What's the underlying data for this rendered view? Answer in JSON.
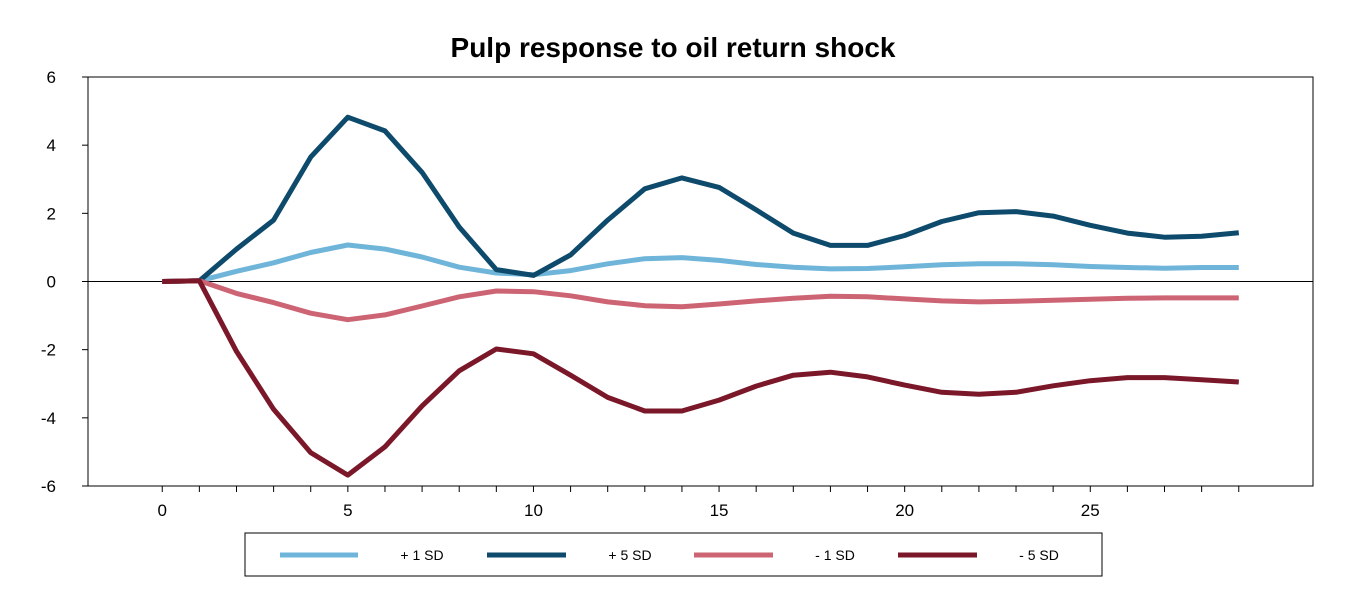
{
  "chart_data": {
    "type": "line",
    "title": "Pulp response to oil return shock",
    "xlabel": "",
    "ylabel": "",
    "xlim": [
      -2,
      31
    ],
    "ylim": [
      -6,
      6
    ],
    "x_ticks": [
      0,
      5,
      10,
      15,
      20,
      25
    ],
    "x_tick_labels": [
      "0",
      "5",
      "10",
      "15",
      "20",
      "25"
    ],
    "y_ticks": [
      -6,
      -4,
      -2,
      0,
      2,
      4,
      6
    ],
    "y_tick_labels": [
      "-6",
      "-4",
      "-2",
      "0",
      "2",
      "4",
      "6"
    ],
    "grid": false,
    "legend_position": "bottom",
    "x": [
      0,
      1,
      2,
      3,
      4,
      5,
      6,
      7,
      8,
      9,
      10,
      11,
      12,
      13,
      14,
      15,
      16,
      17,
      18,
      19,
      20,
      21,
      22,
      23,
      24,
      25,
      26,
      27,
      28,
      29
    ],
    "series": [
      {
        "name": "+ 1 SD",
        "color": "#6fb4d9",
        "values": [
          0,
          0.02,
          0.3,
          0.55,
          0.85,
          1.07,
          0.95,
          0.72,
          0.42,
          0.25,
          0.2,
          0.32,
          0.52,
          0.67,
          0.7,
          0.62,
          0.5,
          0.42,
          0.37,
          0.38,
          0.43,
          0.49,
          0.52,
          0.52,
          0.49,
          0.44,
          0.41,
          0.39,
          0.41,
          0.41
        ]
      },
      {
        "name": "+ 5 SD",
        "color": "#0d4a6b",
        "values": [
          0,
          0.02,
          0.95,
          1.8,
          3.65,
          4.82,
          4.42,
          3.2,
          1.6,
          0.35,
          0.18,
          0.78,
          1.8,
          2.72,
          3.04,
          2.76,
          2.1,
          1.42,
          1.06,
          1.06,
          1.35,
          1.76,
          2.02,
          2.05,
          1.92,
          1.65,
          1.42,
          1.3,
          1.33,
          1.43
        ]
      },
      {
        "name": "- 1 SD",
        "color": "#cd6474",
        "values": [
          0,
          0.02,
          -0.35,
          -0.62,
          -0.93,
          -1.12,
          -0.98,
          -0.72,
          -0.45,
          -0.28,
          -0.3,
          -0.42,
          -0.6,
          -0.71,
          -0.74,
          -0.66,
          -0.57,
          -0.49,
          -0.43,
          -0.45,
          -0.51,
          -0.57,
          -0.6,
          -0.58,
          -0.55,
          -0.52,
          -0.49,
          -0.48,
          -0.48,
          -0.48
        ]
      },
      {
        "name": "- 5 SD",
        "color": "#7a1729",
        "values": [
          0,
          0.02,
          -2.05,
          -3.75,
          -5.02,
          -5.68,
          -4.85,
          -3.65,
          -2.62,
          -1.98,
          -2.12,
          -2.75,
          -3.4,
          -3.8,
          -3.8,
          -3.48,
          -3.07,
          -2.75,
          -2.66,
          -2.8,
          -3.04,
          -3.25,
          -3.31,
          -3.25,
          -3.06,
          -2.91,
          -2.82,
          -2.82,
          -2.88,
          -2.95
        ]
      }
    ]
  }
}
